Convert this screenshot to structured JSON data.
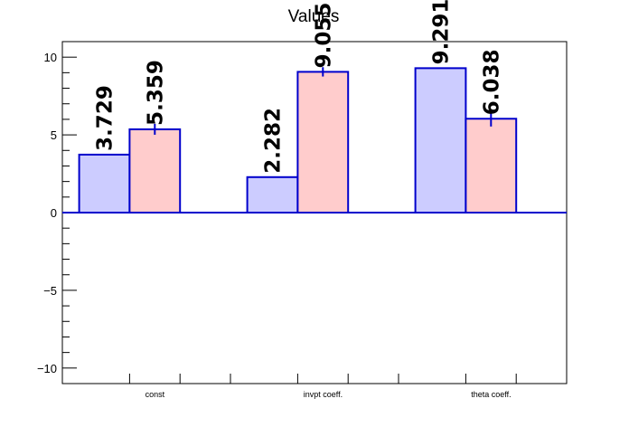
{
  "chart_data": {
    "type": "bar",
    "title": "Values",
    "categories": [
      "const",
      "invpt coeff.",
      "theta coeff."
    ],
    "series": [
      {
        "values": [
          3.729,
          2.282,
          9.291
        ],
        "errors": [
          0,
          0,
          0
        ],
        "labels": [
          "3.729",
          "2.282",
          "9.291"
        ],
        "color": "#ccccff"
      },
      {
        "values": [
          5.359,
          9.055,
          6.038
        ],
        "errors": [
          0.35,
          0.3,
          0.5
        ],
        "labels": [
          "5.359",
          "9.055",
          "6.038"
        ],
        "color": "#ffcccc"
      }
    ],
    "ylim": [
      -11,
      11
    ],
    "yticks": [
      -10,
      -5,
      0,
      5,
      10
    ],
    "ytick_labels": [
      "−10",
      "−5",
      "0",
      "5",
      "10"
    ],
    "xlabel": "",
    "ylabel": "",
    "grid": false,
    "legend": "none",
    "colors": {
      "outline": "#0000cc",
      "axis": "#000000"
    }
  }
}
